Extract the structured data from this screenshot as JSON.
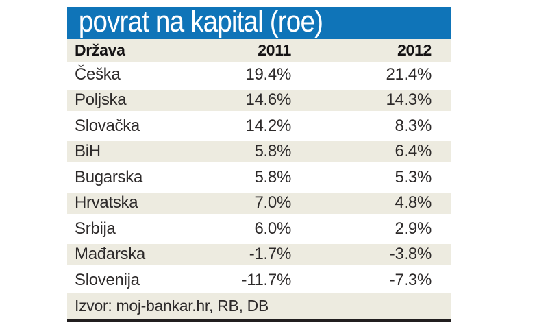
{
  "title": "povrat na kapital (roe)",
  "table": {
    "headers": {
      "country": "Država",
      "col2011": "2011",
      "col2012": "2012"
    },
    "rows": [
      {
        "country": "Češka",
        "y2011": "19.4%",
        "y2012": "21.4%"
      },
      {
        "country": "Poljska",
        "y2011": "14.6%",
        "y2012": "14.3%"
      },
      {
        "country": "Slovačka",
        "y2011": "14.2%",
        "y2012": "8.3%"
      },
      {
        "country": "BiH",
        "y2011": "5.8%",
        "y2012": "6.4%"
      },
      {
        "country": "Bugarska",
        "y2011": "5.8%",
        "y2012": "5.3%"
      },
      {
        "country": "Hrvatska",
        "y2011": "7.0%",
        "y2012": "4.8%"
      },
      {
        "country": "Srbija",
        "y2011": "6.0%",
        "y2012": "2.9%"
      },
      {
        "country": "Mađarska",
        "y2011": "-1.7%",
        "y2012": "-3.8%"
      },
      {
        "country": "Slovenija",
        "y2011": "-11.7%",
        "y2012": "-7.3%"
      }
    ],
    "source": "Izvor: moj-bankar.hr, RB, DB"
  },
  "colors": {
    "title_bg": "#0f74b8",
    "title_text": "#ffffff",
    "row_alt_bg": "#edebe0",
    "text": "#2d2a2a",
    "bottom_rule": "#211e1f"
  },
  "chart_data": {
    "type": "table",
    "title": "povrat na kapital (roe)",
    "categories": [
      "Češka",
      "Poljska",
      "Slovačka",
      "BiH",
      "Bugarska",
      "Hrvatska",
      "Srbija",
      "Mađarska",
      "Slovenija"
    ],
    "series": [
      {
        "name": "2011",
        "values": [
          19.4,
          14.6,
          14.2,
          5.8,
          5.8,
          7.0,
          6.0,
          -1.7,
          -11.7
        ]
      },
      {
        "name": "2012",
        "values": [
          21.4,
          14.3,
          8.3,
          6.4,
          5.3,
          4.8,
          2.9,
          -3.8,
          -7.3
        ]
      }
    ],
    "unit": "percent",
    "source": "moj-bankar.hr, RB, DB"
  }
}
